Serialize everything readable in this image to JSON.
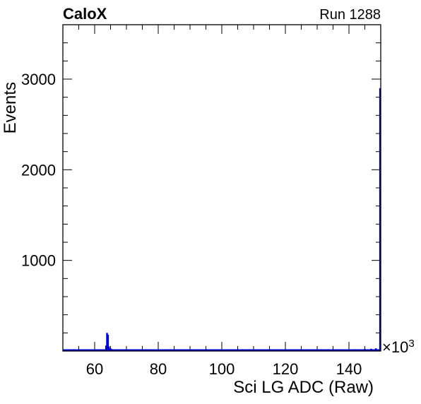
{
  "header": {
    "left_title": "CaloX",
    "right_title": "Run 1288"
  },
  "chart_data": {
    "type": "histogram",
    "title": "",
    "xlabel": "Sci LG ADC (Raw)",
    "ylabel": "Events",
    "x_multiplier": "×10",
    "x_multiplier_exponent": "3",
    "xlim": [
      50,
      150
    ],
    "ylim": [
      0,
      3600
    ],
    "x_ticks": [
      60,
      80,
      100,
      120,
      140
    ],
    "x_tick_labels": [
      "60",
      "80",
      "100",
      "120",
      "140"
    ],
    "y_ticks": [
      1000,
      2000,
      3000
    ],
    "y_tick_labels": [
      "1000",
      "2000",
      "3000"
    ],
    "line_color": "#0000cc",
    "grid": false,
    "points": [
      {
        "x": 63.6,
        "y": 60
      },
      {
        "x": 63.9,
        "y": 200
      },
      {
        "x": 64.2,
        "y": 180
      },
      {
        "x": 64.5,
        "y": 50
      },
      {
        "x": 64.9,
        "y": 30
      },
      {
        "x": 65.2,
        "y": 25
      },
      {
        "x": 130,
        "y": 15
      },
      {
        "x": 133,
        "y": 12
      },
      {
        "x": 138,
        "y": 18
      },
      {
        "x": 142,
        "y": 20
      },
      {
        "x": 145,
        "y": 22
      },
      {
        "x": 147,
        "y": 25
      },
      {
        "x": 148.5,
        "y": 30
      },
      {
        "x": 149.8,
        "y": 2900
      }
    ]
  }
}
